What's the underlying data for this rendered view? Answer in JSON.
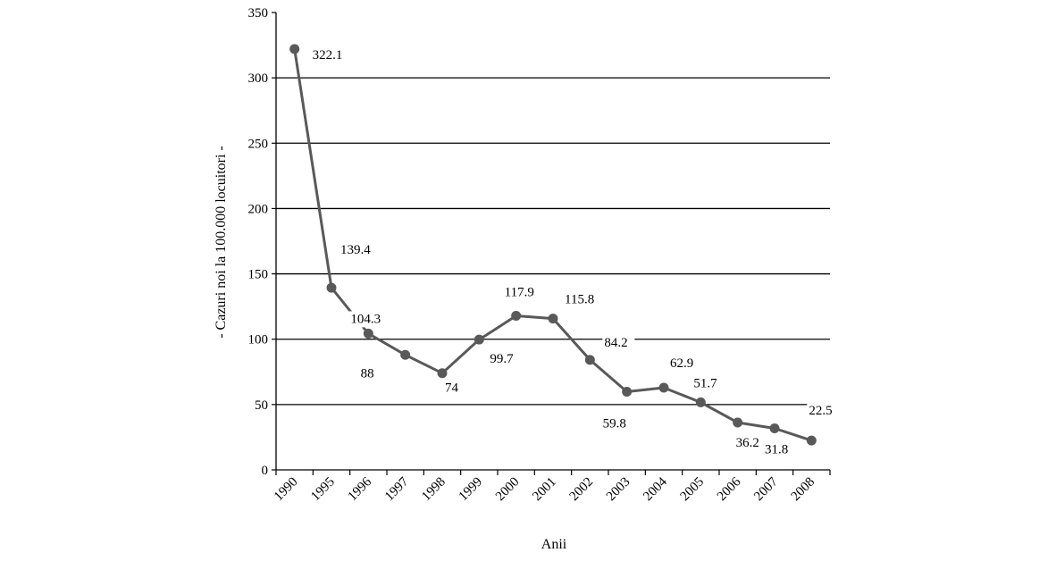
{
  "chart_data": {
    "type": "line",
    "title": "",
    "xlabel": "Anii",
    "ylabel": "- Cazuri noi la 100.000 locuitori -",
    "categories": [
      "1990",
      "1995",
      "1996",
      "1997",
      "1998",
      "1999",
      "2000",
      "2001",
      "2002",
      "2003",
      "2004",
      "2005",
      "2006",
      "2007",
      "2008"
    ],
    "series": [
      {
        "values": [
          322.1,
          139.4,
          104.3,
          88,
          74,
          99.7,
          117.9,
          115.8,
          84.2,
          59.8,
          62.9,
          51.7,
          36.2,
          31.8,
          22.5
        ],
        "labels": [
          "322.1",
          "139.4",
          "104.3",
          "88",
          "74",
          "99.7",
          "117.9",
          "115.8",
          "84.2",
          "59.8",
          "62.9",
          "51.7",
          "36.2",
          "31.8",
          "22.5"
        ]
      }
    ],
    "ylim": [
      0,
      350
    ],
    "yticks": [
      "0",
      "50",
      "100",
      "150",
      "200",
      "250",
      "300",
      "350"
    ],
    "grid": "horizontal",
    "legend": "none",
    "colors": {
      "line": "#595959",
      "marker": "#595959",
      "grid": "#000000",
      "axis": "#000000"
    }
  }
}
